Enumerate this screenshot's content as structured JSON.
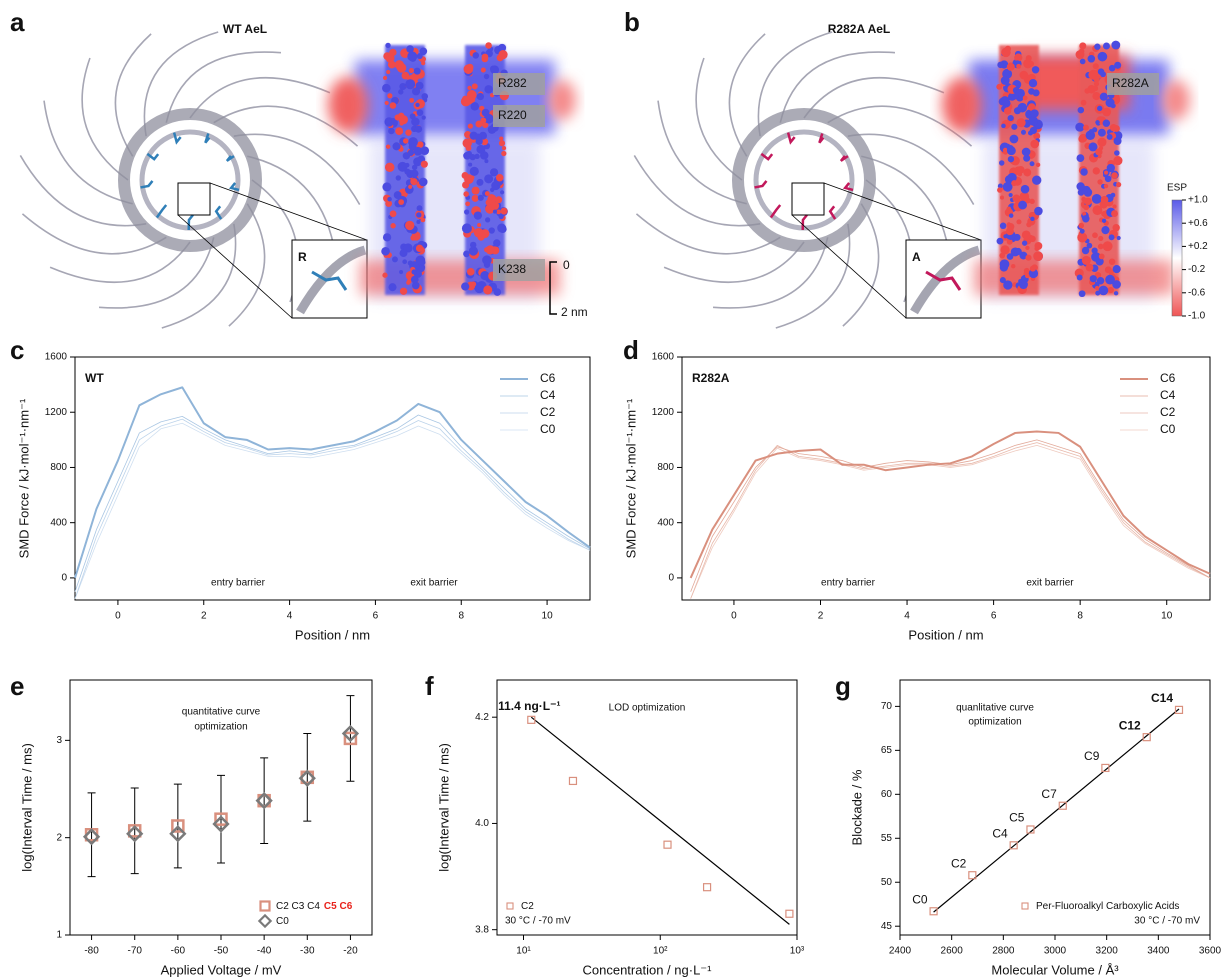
{
  "figure": {
    "panel_a": {
      "letter": "a",
      "title": "WT AeL",
      "title_color": "#9dbcdc",
      "residues": [
        "R282",
        "R220",
        "K238"
      ],
      "inset": "R",
      "inset_color": "#8fb4d8",
      "scale_top": "0",
      "scale_bottom": "2 nm"
    },
    "panel_b": {
      "letter": "b",
      "title": "R282A AeL",
      "title_color": "#dca08f",
      "residues": [
        "R282A"
      ],
      "inset": "A",
      "inset_color": "#d9907e"
    },
    "esp": {
      "title": "ESP",
      "lim": [
        -1,
        1
      ],
      "ticks": [
        {
          "value": 1,
          "label": "+1.0"
        },
        {
          "value": 0.6,
          "label": "+0.6"
        },
        {
          "value": 0.2,
          "label": "+0.2"
        },
        -0.2,
        -0.6,
        {
          "value": -1,
          "label": "-1.0"
        }
      ]
    }
  },
  "chart_data": [
    {
      "type": "line",
      "panel": "c",
      "title": "WT",
      "title_color": "#8fb4d8",
      "x_label": "Position / nm",
      "y_label": "SMD Force / kJ·mol⁻¹·nm⁻¹",
      "x": [
        -1,
        -0.5,
        0,
        0.5,
        1,
        1.5,
        2,
        2.5,
        3,
        3.5,
        4,
        4.5,
        5,
        5.5,
        6,
        6.5,
        7,
        7.5,
        8,
        8.5,
        9,
        9.5,
        10,
        10.5,
        11
      ],
      "series": [
        {
          "name": "C6",
          "color": "#8fb4d8",
          "line_width": 2,
          "values": [
            0,
            500,
            850,
            1250,
            1330,
            1380,
            1120,
            1020,
            1000,
            930,
            940,
            930,
            960,
            990,
            1060,
            1140,
            1260,
            1200,
            1000,
            850,
            700,
            550,
            450,
            330,
            220
          ]
        },
        {
          "name": "C4",
          "color": "#a9c6e3",
          "line_width": 0.8,
          "values": [
            -100,
            350,
            700,
            1050,
            1130,
            1170,
            1080,
            1000,
            950,
            900,
            920,
            900,
            940,
            960,
            1020,
            1080,
            1180,
            1120,
            950,
            800,
            650,
            500,
            400,
            300,
            210
          ]
        },
        {
          "name": "C2",
          "color": "#bcd3ea",
          "line_width": 0.8,
          "values": [
            -150,
            300,
            650,
            1000,
            1100,
            1150,
            1060,
            980,
            940,
            890,
            900,
            890,
            920,
            950,
            1000,
            1060,
            1140,
            1080,
            920,
            780,
            620,
            480,
            380,
            280,
            200
          ]
        },
        {
          "name": "C0",
          "color": "#cfdff0",
          "line_width": 0.8,
          "values": [
            -150,
            250,
            600,
            950,
            1080,
            1120,
            1040,
            960,
            920,
            880,
            880,
            870,
            900,
            930,
            980,
            1030,
            1100,
            1040,
            900,
            760,
            600,
            460,
            360,
            270,
            200
          ]
        }
      ],
      "xlim": [
        -1,
        11
      ],
      "ylim": [
        -160,
        1600
      ],
      "xticks": [
        0,
        2,
        4,
        6,
        8,
        10
      ],
      "yticks": [
        0,
        400,
        800,
        1200,
        1600
      ],
      "annotations": [
        "entry barrier",
        "exit barrier"
      ],
      "legend": "upper right"
    },
    {
      "type": "line",
      "panel": "d",
      "title": "R282A",
      "title_color": "#d9907e",
      "x_label": "Position / nm",
      "y_label": "SMD Force / kJ·mol⁻¹·nm⁻¹",
      "x": [
        -1,
        -0.5,
        0,
        0.5,
        1,
        1.5,
        2,
        2.5,
        3,
        3.5,
        4,
        4.5,
        5,
        5.5,
        6,
        6.5,
        7,
        7.5,
        8,
        8.5,
        9,
        9.5,
        10,
        10.5,
        11
      ],
      "series": [
        {
          "name": "C6",
          "color": "#d9907e",
          "line_width": 2,
          "values": [
            0,
            350,
            600,
            850,
            900,
            920,
            930,
            820,
            820,
            780,
            800,
            820,
            830,
            880,
            970,
            1050,
            1060,
            1050,
            950,
            700,
            450,
            300,
            200,
            100,
            30
          ]
        },
        {
          "name": "C4",
          "color": "#e2a999",
          "line_width": 0.8,
          "values": [
            -100,
            300,
            550,
            800,
            950,
            900,
            880,
            850,
            800,
            830,
            850,
            840,
            820,
            850,
            900,
            960,
            1000,
            950,
            900,
            650,
            420,
            280,
            180,
            90,
            0
          ]
        },
        {
          "name": "C2",
          "color": "#e8b9ab",
          "line_width": 0.8,
          "values": [
            -150,
            250,
            500,
            780,
            960,
            880,
            860,
            830,
            790,
            810,
            830,
            830,
            810,
            830,
            880,
            940,
            980,
            930,
            880,
            630,
            400,
            260,
            170,
            80,
            0
          ]
        },
        {
          "name": "C0",
          "color": "#efcbc0",
          "line_width": 0.8,
          "values": [
            -150,
            220,
            480,
            760,
            940,
            870,
            850,
            820,
            780,
            800,
            820,
            820,
            800,
            820,
            870,
            920,
            960,
            910,
            860,
            610,
            380,
            250,
            160,
            70,
            0
          ]
        }
      ],
      "xlim": [
        -1.2,
        11
      ],
      "ylim": [
        -160,
        1600
      ],
      "xticks": [
        0,
        2,
        4,
        6,
        8,
        10
      ],
      "yticks": [
        0,
        400,
        800,
        1200,
        1600
      ],
      "annotations": [
        "entry barrier",
        "exit barrier"
      ],
      "legend": "upper right"
    },
    {
      "type": "scatter",
      "panel": "e",
      "x_label": "Applied Voltage / mV",
      "y_label": "log(Interval Time / ms)",
      "x": [
        -80,
        -70,
        -60,
        -50,
        -40,
        -30,
        -20
      ],
      "series": [
        {
          "name": "C2 C3 C4",
          "name_highlight": "C5 C6",
          "highlight_color": "#e8221b",
          "marker": "square",
          "color": "#d9907e",
          "values": [
            2.03,
            2.07,
            2.12,
            2.19,
            2.38,
            2.62,
            3.02
          ],
          "errors": [
            0.43,
            0.44,
            0.43,
            0.45,
            0.44,
            0.45,
            0.44
          ],
          "error_color": "#000000"
        },
        {
          "name": "C0",
          "marker": "diamond",
          "color": "#7a7a7a",
          "values": [
            2.01,
            2.04,
            2.04,
            2.14,
            2.38,
            2.61,
            3.07
          ]
        }
      ],
      "xlim": [
        -85,
        -15
      ],
      "ylim": [
        1,
        3.62
      ],
      "xticks": [
        -80,
        -70,
        -60,
        -50,
        -40,
        -30,
        -20
      ],
      "yticks": [
        1,
        2,
        3
      ],
      "annotations": [
        "quantitative curve",
        "optimization"
      ],
      "legend": "lower right"
    },
    {
      "type": "scatter",
      "panel": "f",
      "x_label": "Concentration / ng·L⁻¹",
      "y_label": "log(Interval Time / ms)",
      "xscale": "log",
      "x": [
        11.4,
        23,
        113,
        220,
        880
      ],
      "series": [
        {
          "name": "C2",
          "marker": "square",
          "color": "#d9907e",
          "values": [
            4.195,
            4.08,
            3.96,
            3.88,
            3.83
          ]
        }
      ],
      "fit": {
        "x": [
          11.4,
          880
        ],
        "y": [
          4.2,
          3.81
        ]
      },
      "fit_color": "#000000",
      "point_labels": [
        "11.4 ng·L⁻¹",
        null,
        null,
        null,
        null
      ],
      "point_label_colors": [
        "#e8221b",
        null,
        null,
        null,
        null
      ],
      "xlim": [
        6.4,
        1000
      ],
      "ylim": [
        3.79,
        4.27
      ],
      "xticks": [
        {
          "value": 10,
          "label": "10¹"
        },
        {
          "value": 100,
          "label": "10²"
        },
        {
          "value": 1000,
          "label": "10³"
        }
      ],
      "yticks": [
        3.8,
        {
          "value": 4,
          "label": "4.0"
        },
        4.2
      ],
      "annotations": [
        "LOD optimization"
      ],
      "legend": "lower left",
      "legend_note": "30 °C / -70 mV"
    },
    {
      "type": "scatter",
      "panel": "g",
      "x_label": "Molecular Volume / Å³",
      "y_label": "Blockade / %",
      "x": [
        2530,
        2680,
        2840,
        2905,
        3030,
        3195,
        3355,
        3480
      ],
      "series": [
        {
          "name": "Per-Fluoroalkyl Carboxylic Acids",
          "marker": "square",
          "color": "#d9907e",
          "values": [
            46.7,
            50.8,
            54.2,
            56.0,
            58.7,
            63.0,
            66.5,
            69.6
          ]
        }
      ],
      "fit": {
        "x": [
          2530,
          3480
        ],
        "y": [
          46.6,
          69.7
        ]
      },
      "fit_color": "#000000",
      "point_labels": [
        "C0",
        "C2",
        "C4",
        "C5",
        "C7",
        "C9",
        "C12",
        "C14"
      ],
      "point_label_colors": [
        "#000000",
        "#000000",
        "#000000",
        "#000000",
        "#000000",
        "#000000",
        "#e8221b",
        "#e8221b"
      ],
      "xlim": [
        2400,
        3600
      ],
      "ylim": [
        44,
        73
      ],
      "xticks": [
        2400,
        2600,
        2800,
        3000,
        3200,
        3400,
        3600
      ],
      "yticks": [
        45,
        50,
        55,
        60,
        65,
        70
      ],
      "annotations": [
        "quanlitative curve",
        "optimization"
      ],
      "legend": "lower right",
      "legend_note": "30 °C / -70 mV"
    }
  ]
}
